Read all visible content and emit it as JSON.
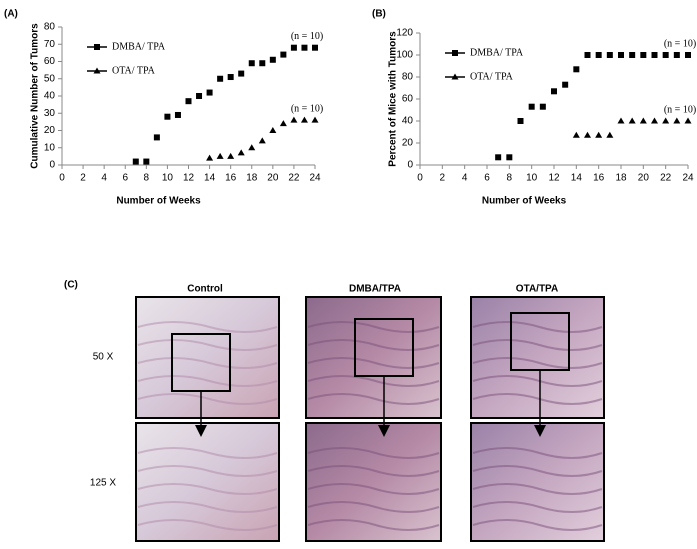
{
  "chart_data": [
    {
      "type": "line",
      "panel_label": "(A)",
      "x_label": "Number of Weeks",
      "y_label": "Cumulative Number of Tumors",
      "x": [
        7,
        8,
        9,
        10,
        11,
        12,
        13,
        14,
        15,
        16,
        17,
        18,
        19,
        20,
        21,
        22,
        23,
        24
      ],
      "series": [
        {
          "name": "DMBA/ TPA",
          "color": "#000000",
          "marker": "square",
          "values": [
            2,
            2,
            16,
            28,
            29,
            37,
            40,
            42,
            50,
            51,
            53,
            59,
            59,
            61,
            64,
            68,
            68,
            68
          ]
        },
        {
          "name": "OTA/ TPA",
          "color": "#000000",
          "marker": "triangle",
          "values": [
            null,
            null,
            null,
            null,
            null,
            null,
            null,
            4,
            5,
            5,
            7,
            10,
            14,
            20,
            24,
            26,
            26,
            26
          ]
        }
      ],
      "annotations": [
        "(n = 10)",
        "(n = 10)"
      ],
      "xlim": [
        0,
        24
      ],
      "xticks": [
        0,
        2,
        4,
        6,
        8,
        10,
        12,
        14,
        16,
        18,
        20,
        22,
        24
      ],
      "ylim": [
        0,
        80
      ],
      "yticks": [
        0,
        10,
        20,
        30,
        40,
        50,
        60,
        70,
        80
      ]
    },
    {
      "type": "line",
      "panel_label": "(B)",
      "x_label": "Number of Weeks",
      "y_label": "Percent of Mice with Tumors",
      "x": [
        7,
        8,
        9,
        10,
        11,
        12,
        13,
        14,
        15,
        16,
        17,
        18,
        19,
        20,
        21,
        22,
        23,
        24
      ],
      "series": [
        {
          "name": "DMBA/ TPA",
          "color": "#000000",
          "marker": "square",
          "values": [
            7,
            7,
            40,
            53,
            53,
            67,
            73,
            87,
            100,
            100,
            100,
            100,
            100,
            100,
            100,
            100,
            100,
            100
          ]
        },
        {
          "name": "OTA/ TPA",
          "color": "#000000",
          "marker": "triangle",
          "values": [
            null,
            null,
            null,
            null,
            null,
            null,
            null,
            27,
            27,
            27,
            27,
            40,
            40,
            40,
            40,
            40,
            40,
            40
          ]
        }
      ],
      "annotations": [
        "(n = 10)",
        "(n = 10)"
      ],
      "xlim": [
        0,
        24
      ],
      "xticks": [
        0,
        2,
        4,
        6,
        8,
        10,
        12,
        14,
        16,
        18,
        20,
        22,
        24
      ],
      "ylim": [
        0,
        120
      ],
      "yticks": [
        0,
        20,
        40,
        60,
        80,
        100,
        120
      ]
    }
  ],
  "panel_c": {
    "label": "(C)",
    "columns": [
      "Control",
      "DMBA/TPA",
      "OTA/TPA"
    ],
    "rows": [
      "50 X",
      "125 X"
    ]
  }
}
